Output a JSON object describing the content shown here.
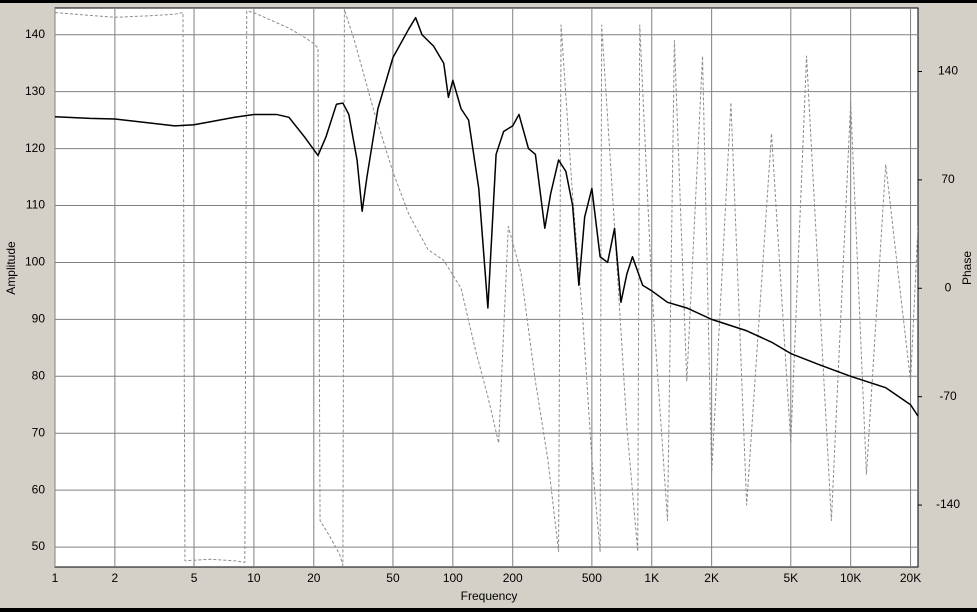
{
  "chart_data": {
    "type": "line",
    "xlabel": "Frequency",
    "ylabel": "Amplitude",
    "y2label": "Phase",
    "xscale": "log",
    "grid": true,
    "xlim": [
      1,
      21800
    ],
    "xticks": [
      1,
      2,
      5,
      10,
      20,
      50,
      100,
      200,
      500,
      {
        "value": 1000,
        "label": "1K"
      },
      {
        "value": 2000,
        "label": "2K"
      },
      {
        "value": 5000,
        "label": "5K"
      },
      {
        "value": 10000,
        "label": "10K"
      },
      {
        "value": 20000,
        "label": "20K"
      }
    ],
    "ylim": [
      46.5,
      144.7
    ],
    "yticks": [
      50,
      60,
      70,
      80,
      90,
      100,
      110,
      120,
      130,
      140
    ],
    "y2lim": [
      -180,
      181
    ],
    "y2ticks": [
      140,
      70,
      0,
      -70,
      -140
    ],
    "series": [
      {
        "color": "#000000",
        "axis": "y",
        "x": [
          1,
          1.5,
          2,
          3,
          4,
          5,
          6,
          8,
          10,
          13,
          15,
          18,
          21,
          23,
          26,
          28,
          30,
          33,
          35,
          37,
          42,
          50,
          60,
          65,
          70,
          80,
          90,
          95,
          100,
          110,
          120,
          135,
          150,
          165,
          180,
          200,
          215,
          240,
          260,
          290,
          310,
          340,
          370,
          400,
          430,
          460,
          500,
          550,
          600,
          650,
          700,
          750,
          800,
          900,
          1000,
          1200,
          1500,
          2000,
          3000,
          4000,
          5000,
          7000,
          10000,
          15000,
          20000,
          21800
        ],
        "values": [
          125.6,
          125.3,
          125.2,
          124.5,
          124.0,
          124.2,
          124.7,
          125.5,
          126.0,
          126.0,
          125.5,
          122,
          118.8,
          122,
          127.8,
          128,
          126,
          118,
          109,
          115,
          127,
          136,
          141,
          143,
          140,
          138,
          135,
          129,
          132,
          127,
          125,
          113,
          92,
          119,
          123,
          124,
          126,
          120,
          119,
          106,
          112,
          118,
          116,
          110,
          96,
          108,
          113,
          101,
          100,
          106,
          93,
          98,
          101,
          96,
          95,
          93,
          92,
          90,
          88,
          86,
          84,
          82,
          80,
          78,
          75,
          73
        ]
      },
      {
        "color": "#8c8c8c",
        "axis": "y2",
        "dashed": true,
        "x": [
          1,
          2,
          3,
          4,
          4.4,
          4.5,
          6,
          8,
          9,
          9.2,
          10,
          15,
          18,
          20,
          21,
          21.5,
          24,
          27,
          28,
          28.5,
          32,
          40,
          50,
          60,
          75,
          90,
          110,
          130,
          150,
          170,
          190,
          220,
          260,
          300,
          340,
          350,
          400,
          450,
          500,
          550,
          560,
          650,
          750,
          850,
          870,
          1000,
          1200,
          1300,
          1500,
          1800,
          2000,
          2500,
          3000,
          4000,
          5000,
          6000,
          8000,
          10000,
          12000,
          15000,
          20000,
          21800
        ],
        "values": [
          178,
          175,
          176,
          177,
          178,
          -176,
          -175,
          -176,
          -177,
          179,
          178,
          168,
          162,
          158,
          155,
          -150,
          -160,
          -172,
          -179,
          180,
          160,
          115,
          75,
          48,
          25,
          18,
          0,
          -40,
          -70,
          -100,
          40,
          10,
          -60,
          -110,
          -170,
          170,
          60,
          -20,
          -110,
          -170,
          170,
          40,
          -90,
          -170,
          170,
          0,
          -150,
          160,
          -60,
          150,
          -120,
          120,
          -140,
          100,
          -100,
          150,
          -150,
          120,
          -120,
          80,
          -60,
          40
        ]
      }
    ]
  }
}
